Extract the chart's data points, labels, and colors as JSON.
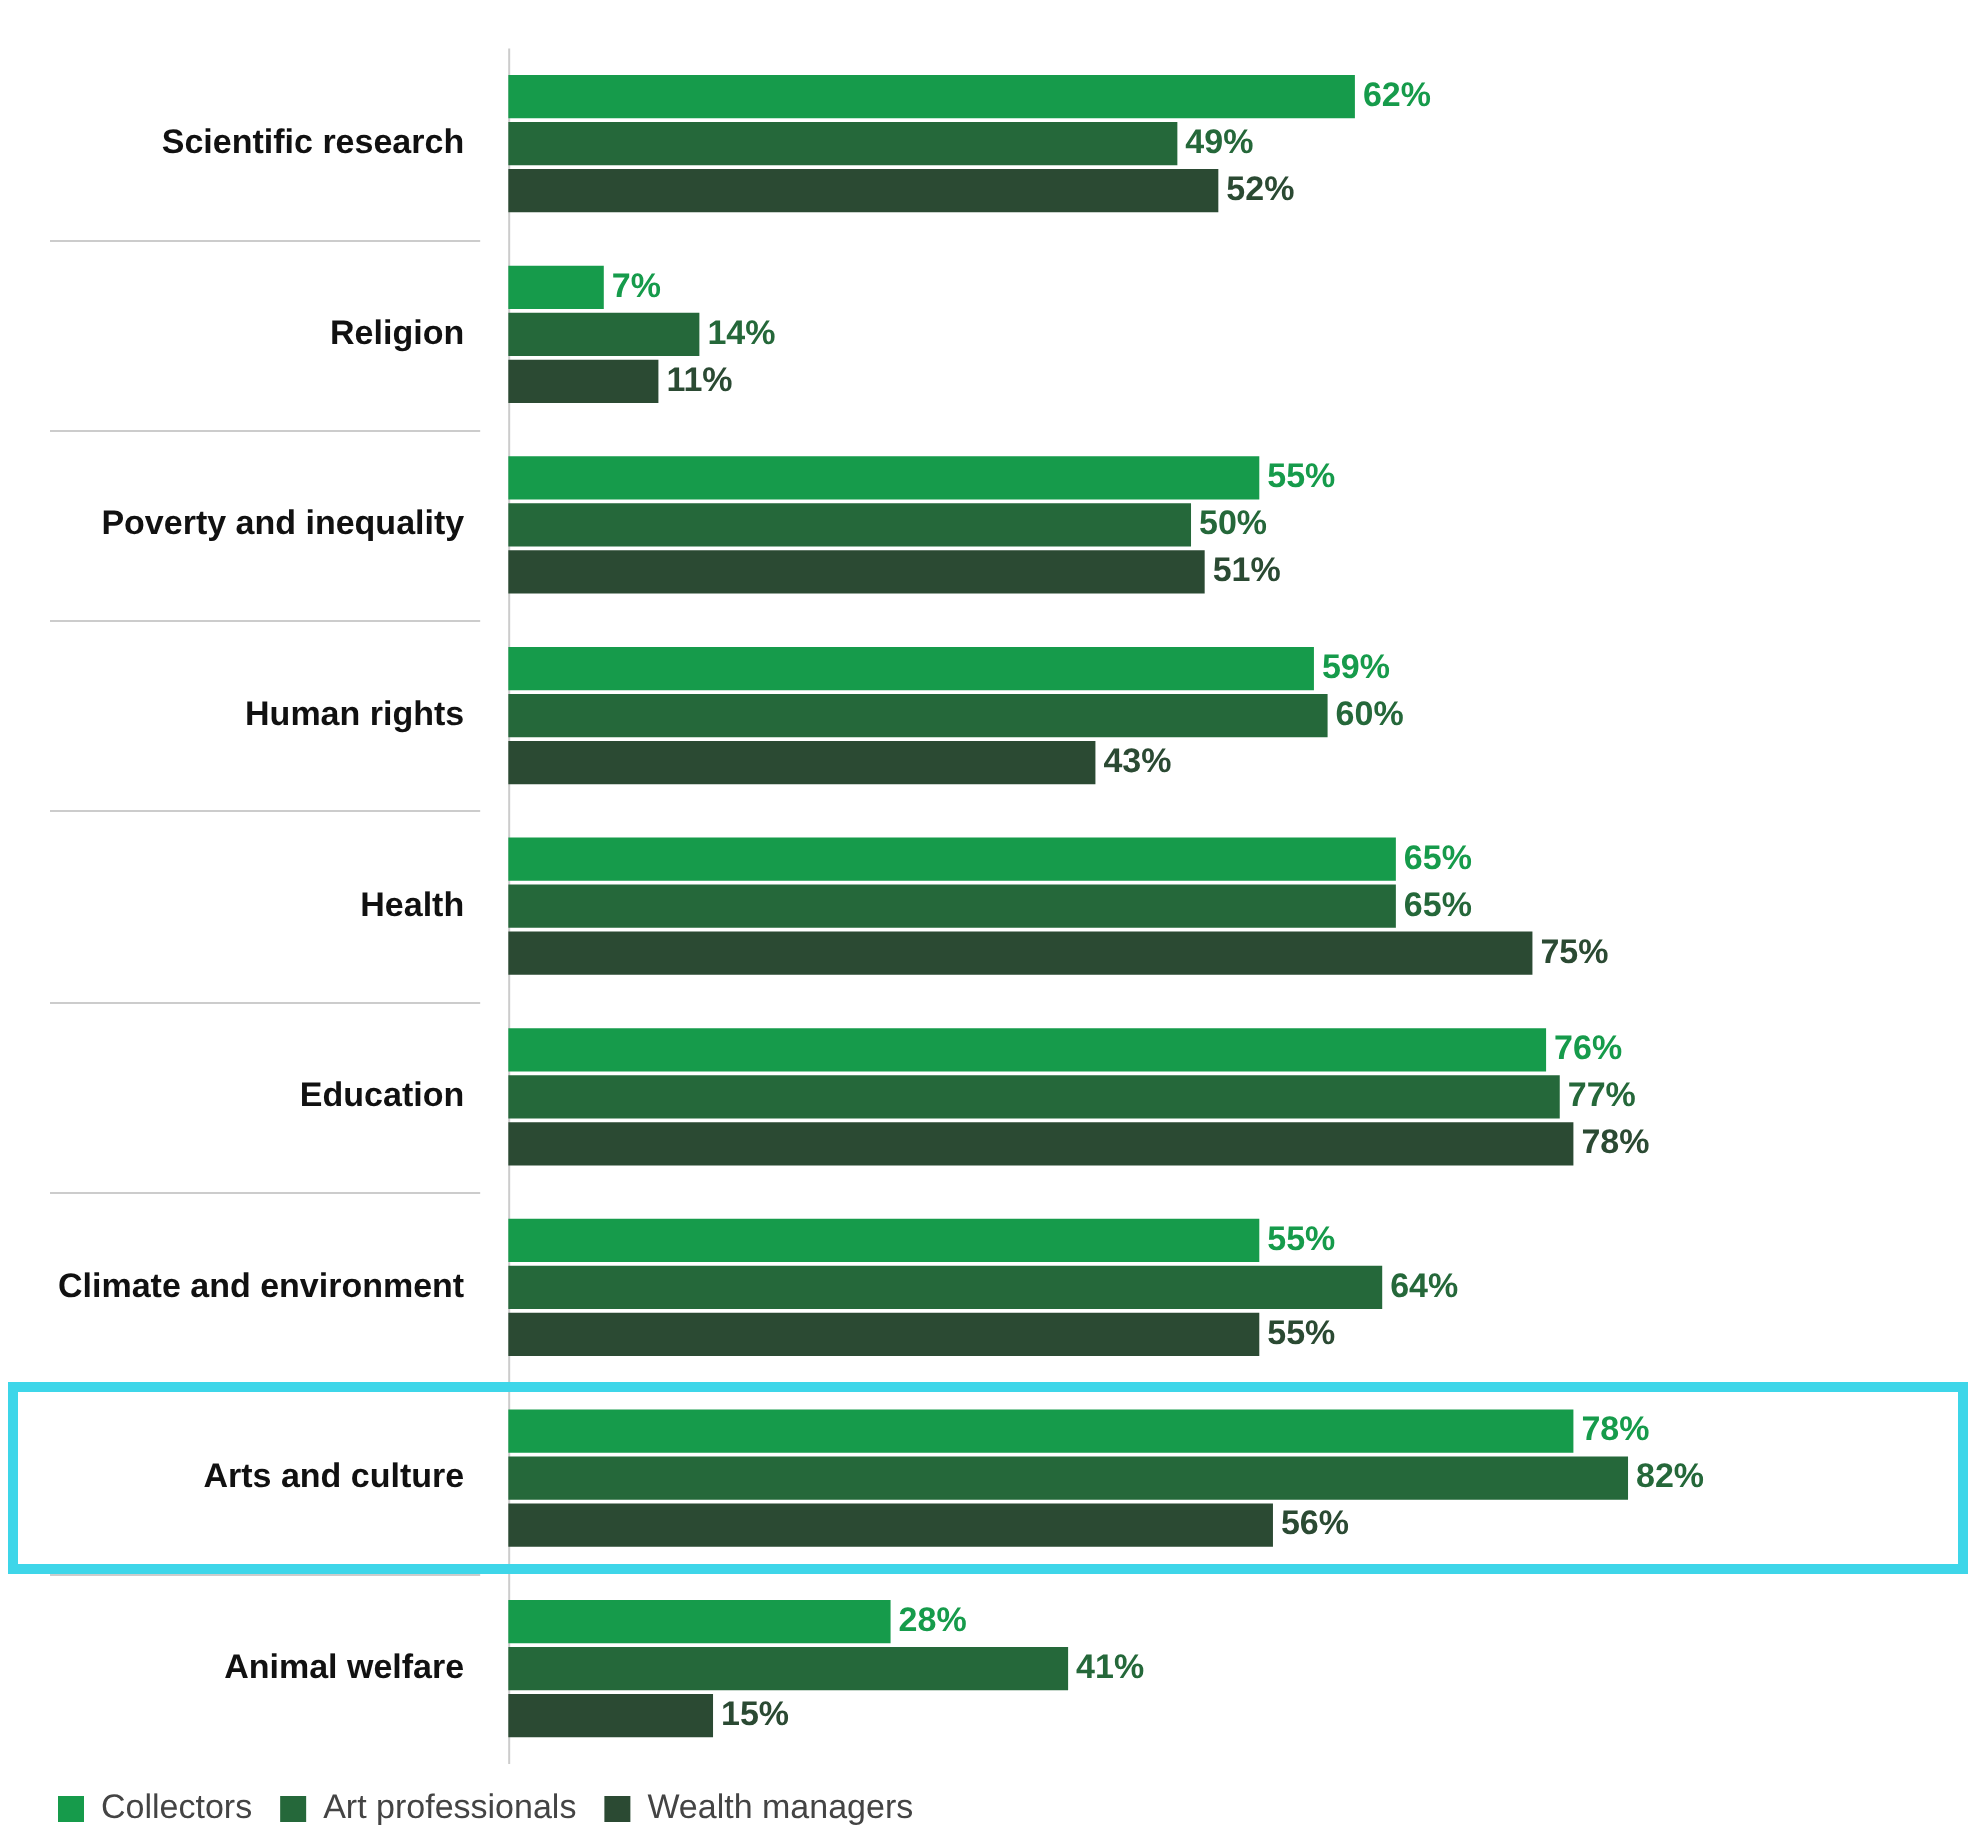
{
  "chart_data": {
    "type": "bar",
    "orientation": "horizontal",
    "legend": "bottom left",
    "categories": [
      "Scientific research",
      "Religion",
      "Poverty and inequality",
      "Human rights",
      "Health",
      "Education",
      "Climate and environment",
      "Arts and culture",
      "Animal welfare"
    ],
    "series": [
      {
        "name": "Collectors",
        "color": "#169b4b",
        "values": [
          62,
          7,
          55,
          59,
          65,
          76,
          55,
          78,
          28
        ],
        "value_labels": [
          "62%",
          "7%",
          "55%",
          "59%",
          "65%",
          "76%",
          "55%",
          "78%",
          "28%"
        ]
      },
      {
        "name": "Art professionals",
        "color": "#25683a",
        "values": [
          49,
          14,
          50,
          60,
          65,
          77,
          64,
          82,
          41
        ],
        "value_labels": [
          "49%",
          "14%",
          "50%",
          "60%",
          "65%",
          "77%",
          "64%",
          "82%",
          "41%"
        ]
      },
      {
        "name": "Wealth managers",
        "color": "#2b4a33",
        "values": [
          52,
          11,
          51,
          43,
          75,
          78,
          55,
          56,
          15
        ],
        "value_labels": [
          "52%",
          "11%",
          "51%",
          "43%",
          "75%",
          "78%",
          "55%",
          "56%",
          "15%"
        ]
      }
    ]
  }
}
